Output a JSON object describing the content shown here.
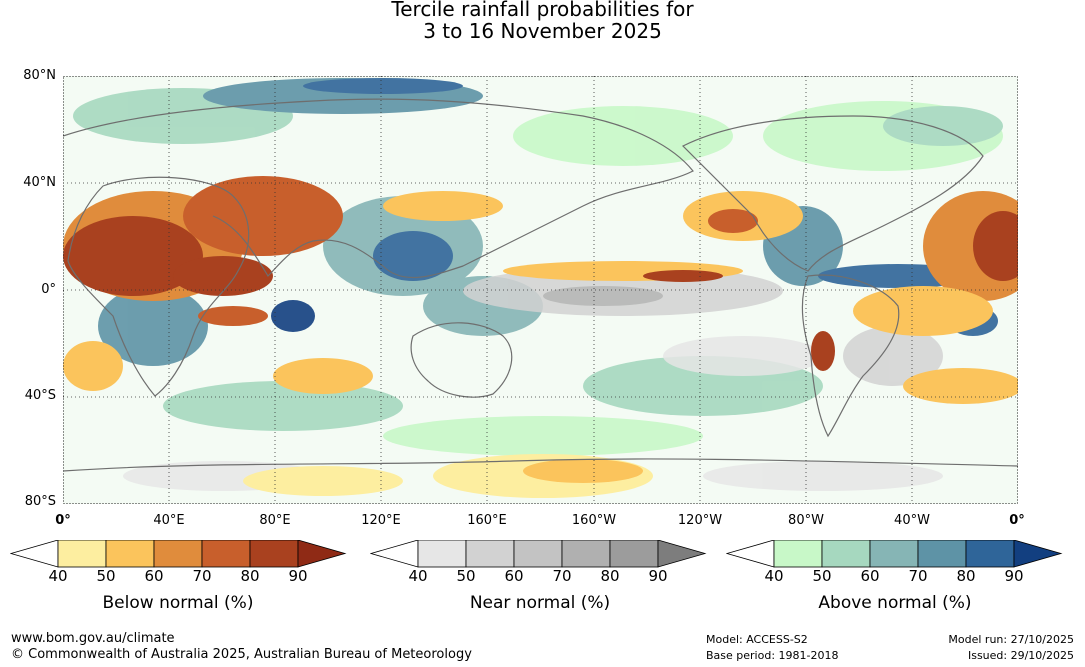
{
  "title": {
    "line1": "Tercile rainfall probabilities for",
    "line2": "3 to 16 November 2025"
  },
  "map": {
    "lat_labels": [
      "80°N",
      "40°N",
      "0°",
      "40°S",
      "80°S"
    ],
    "lon_labels": [
      "0°",
      "40°E",
      "80°E",
      "120°E",
      "160°E",
      "160°W",
      "120°W",
      "80°W",
      "40°W",
      "0°"
    ]
  },
  "colorbars": [
    {
      "name": "below",
      "label": "Below normal (%)",
      "ticks": [
        "40",
        "50",
        "60",
        "70",
        "80",
        "90"
      ],
      "colors": [
        "#ffffff",
        "#fdeea0",
        "#fbc45c",
        "#e08c3c",
        "#c85f2c",
        "#a9411f",
        "#8f2a15"
      ]
    },
    {
      "name": "near",
      "label": "Near normal (%)",
      "ticks": [
        "40",
        "50",
        "60",
        "70",
        "80",
        "90"
      ],
      "colors": [
        "#ffffff",
        "#e6e6e6",
        "#d2d2d2",
        "#c3c3c3",
        "#b0b0b0",
        "#9c9c9c",
        "#7d7d7d"
      ]
    },
    {
      "name": "above",
      "label": "Above normal (%)",
      "ticks": [
        "40",
        "50",
        "60",
        "70",
        "80",
        "90"
      ],
      "colors": [
        "#ffffff",
        "#c8f8c8",
        "#a6d8bf",
        "#86b5b5",
        "#5e93a6",
        "#2f6599",
        "#123f80"
      ]
    }
  ],
  "footer": {
    "website": "www.bom.gov.au/climate",
    "copyright": "© Commonwealth of Australia 2025, Australian Bureau of Meteorology",
    "model": "Model: ACCESS-S2",
    "base_period": "Base period: 1981-2018",
    "model_run": "Model run: 27/10/2025",
    "issued": "Issued: 29/10/2025"
  }
}
